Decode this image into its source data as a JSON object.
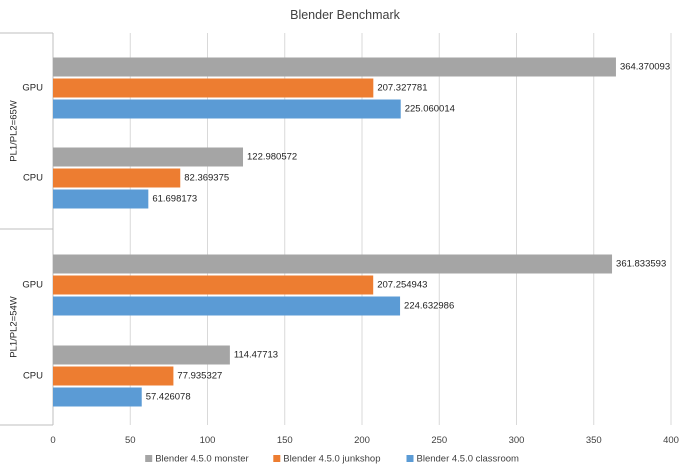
{
  "chart_data": {
    "type": "bar",
    "orientation": "horizontal",
    "title": "Blender Benchmark",
    "xlim": [
      0,
      400
    ],
    "x_ticks": [
      0,
      50,
      100,
      150,
      200,
      250,
      300,
      350,
      400
    ],
    "grid": true,
    "legend_position": "bottom",
    "groups": [
      {
        "name": "PL1/PL2=65W",
        "categories": [
          {
            "name": "GPU",
            "values": [
              364.370093,
              207.327781,
              225.060014
            ],
            "labels": [
              "364.370093",
              "207.327781",
              "225.060014"
            ]
          },
          {
            "name": "CPU",
            "values": [
              122.980572,
              82.369375,
              61.698173
            ],
            "labels": [
              "122.980572",
              "82.369375",
              "61.698173"
            ]
          }
        ]
      },
      {
        "name": "PL1/PL2=54W",
        "categories": [
          {
            "name": "GPU",
            "values": [
              361.833593,
              207.254943,
              224.632986
            ],
            "labels": [
              "361.833593",
              "207.254943",
              "224.632986"
            ]
          },
          {
            "name": "CPU",
            "values": [
              114.47713,
              77.935327,
              57.426078
            ],
            "labels": [
              "114.47713",
              "77.935327",
              "57.426078"
            ]
          }
        ]
      }
    ],
    "series": [
      {
        "name": "Blender 4.5.0 monster",
        "color": "#a5a5a5"
      },
      {
        "name": "Blender 4.5.0 junkshop",
        "color": "#ed7d31"
      },
      {
        "name": "Blender 4.5.0 classroom",
        "color": "#5b9bd5"
      }
    ]
  }
}
